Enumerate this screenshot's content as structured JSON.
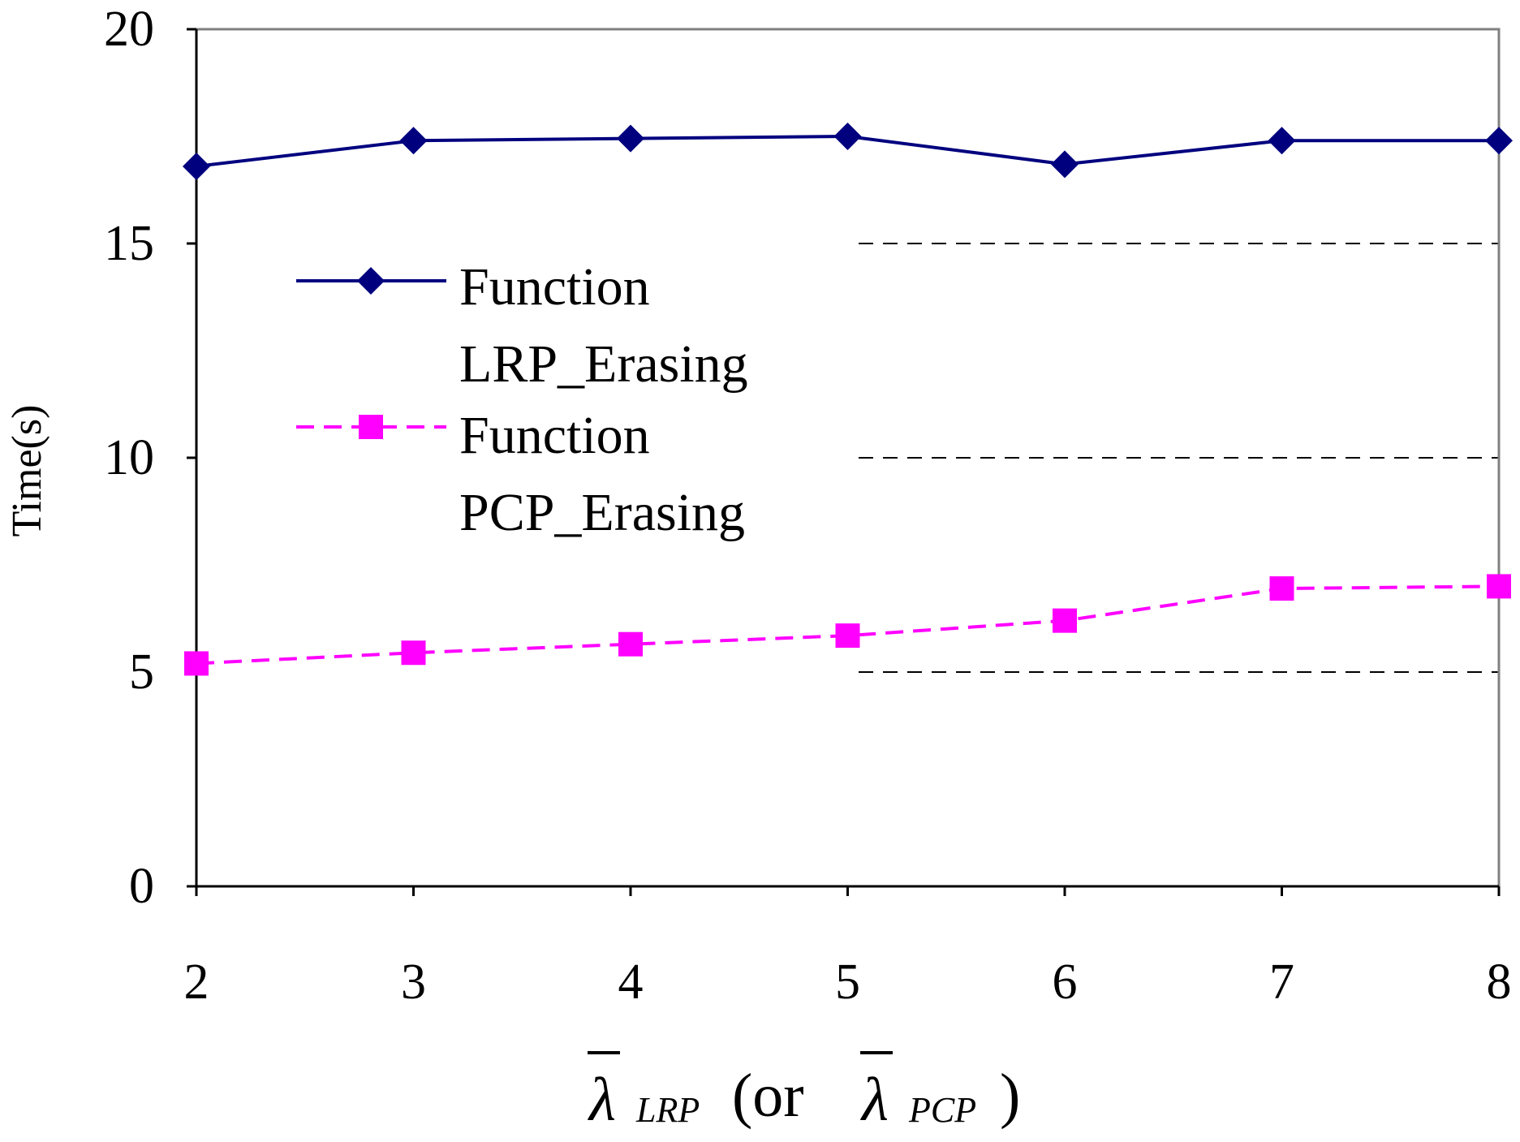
{
  "chart_data": {
    "type": "line",
    "title": "",
    "x": [
      2,
      3,
      4,
      5,
      6,
      7,
      8
    ],
    "xlim": [
      2,
      8
    ],
    "ylim": [
      0,
      20
    ],
    "yticks": [
      0,
      5,
      10,
      15,
      20
    ],
    "grid": "horizontal dashed (right portion)",
    "ylabel": "Time(s)",
    "xlabel": {
      "symbol": "λ",
      "sub1": "LRP",
      "middle": "(or",
      "sub2": "PCP",
      "end": ")"
    },
    "legend_position": "upper-left",
    "series": [
      {
        "name_line1": "Function",
        "name_line2": "LRP_Erasing",
        "values": [
          16.8,
          17.4,
          17.45,
          17.5,
          16.85,
          17.4,
          17.4
        ],
        "color": "#00007f",
        "marker": "diamond",
        "linestyle": "solid"
      },
      {
        "name_line1": "Function",
        "name_line2": "PCP_Erasing",
        "values": [
          5.2,
          5.45,
          5.65,
          5.85,
          6.2,
          6.95,
          7.0
        ],
        "color": "#ff00ff",
        "marker": "square",
        "linestyle": "dashed"
      }
    ]
  }
}
